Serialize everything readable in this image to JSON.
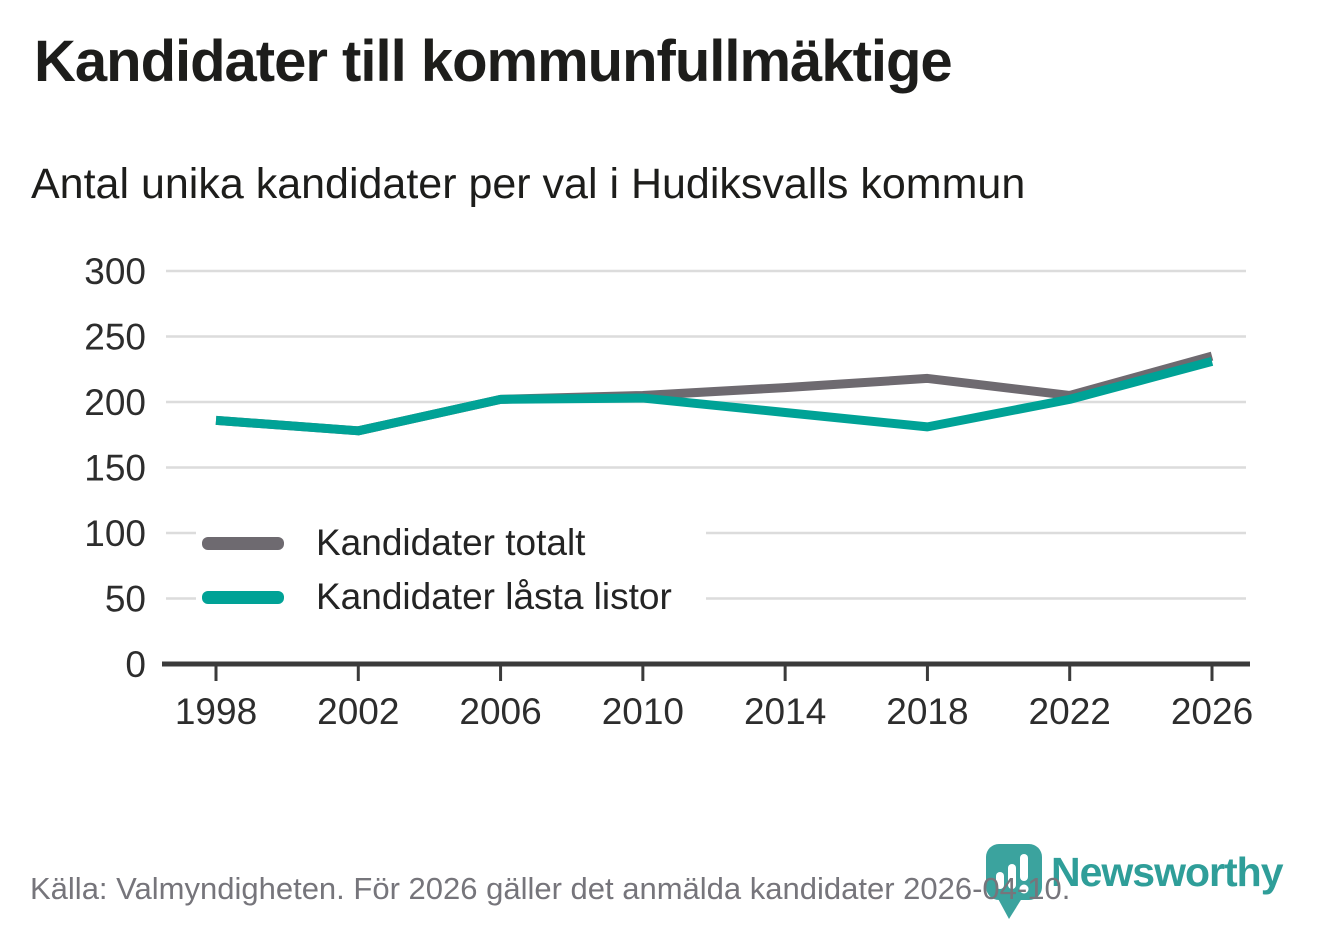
{
  "header": {
    "title": "Kandidater till kommunfullmäktige",
    "subtitle": "Antal unika kandidater per val i Hudiksvalls kommun"
  },
  "chart_data": {
    "type": "line",
    "title": "Kandidater till kommunfullmäktige",
    "subtitle": "Antal unika kandidater per val i Hudiksvalls kommun",
    "x": [
      1998,
      2002,
      2006,
      2010,
      2014,
      2018,
      2022,
      2026
    ],
    "x_tick_labels": [
      "1998",
      "2002",
      "2006",
      "2010",
      "2014",
      "2018",
      "2022",
      "2026"
    ],
    "series": [
      {
        "name": "Kandidater totalt",
        "color": "#6e6a70",
        "values": [
          186,
          178,
          202,
          205,
          211,
          218,
          205,
          235
        ]
      },
      {
        "name": "Kandidater låsta listor",
        "color": "#00a296",
        "values": [
          186,
          178,
          202,
          203,
          192,
          181,
          202,
          231
        ]
      }
    ],
    "ylim": [
      0,
      300
    ],
    "yticks": [
      0,
      50,
      100,
      150,
      200,
      250,
      300
    ],
    "grid": true,
    "legend_position": "inside-left",
    "xlabel": "",
    "ylabel": ""
  },
  "footer": {
    "source": "Källa: Valmyndigheten. För 2026 gäller det anmälda kandidater 2026-04-10.",
    "brand": "Newsworthy"
  },
  "colors": {
    "grid": "#dcdcdc",
    "axis": "#3b3b3b",
    "tick_text": "#2d2d2d",
    "brand_teal_icon": "#3ba39e",
    "brand_teal_word": "#2f9e99"
  }
}
